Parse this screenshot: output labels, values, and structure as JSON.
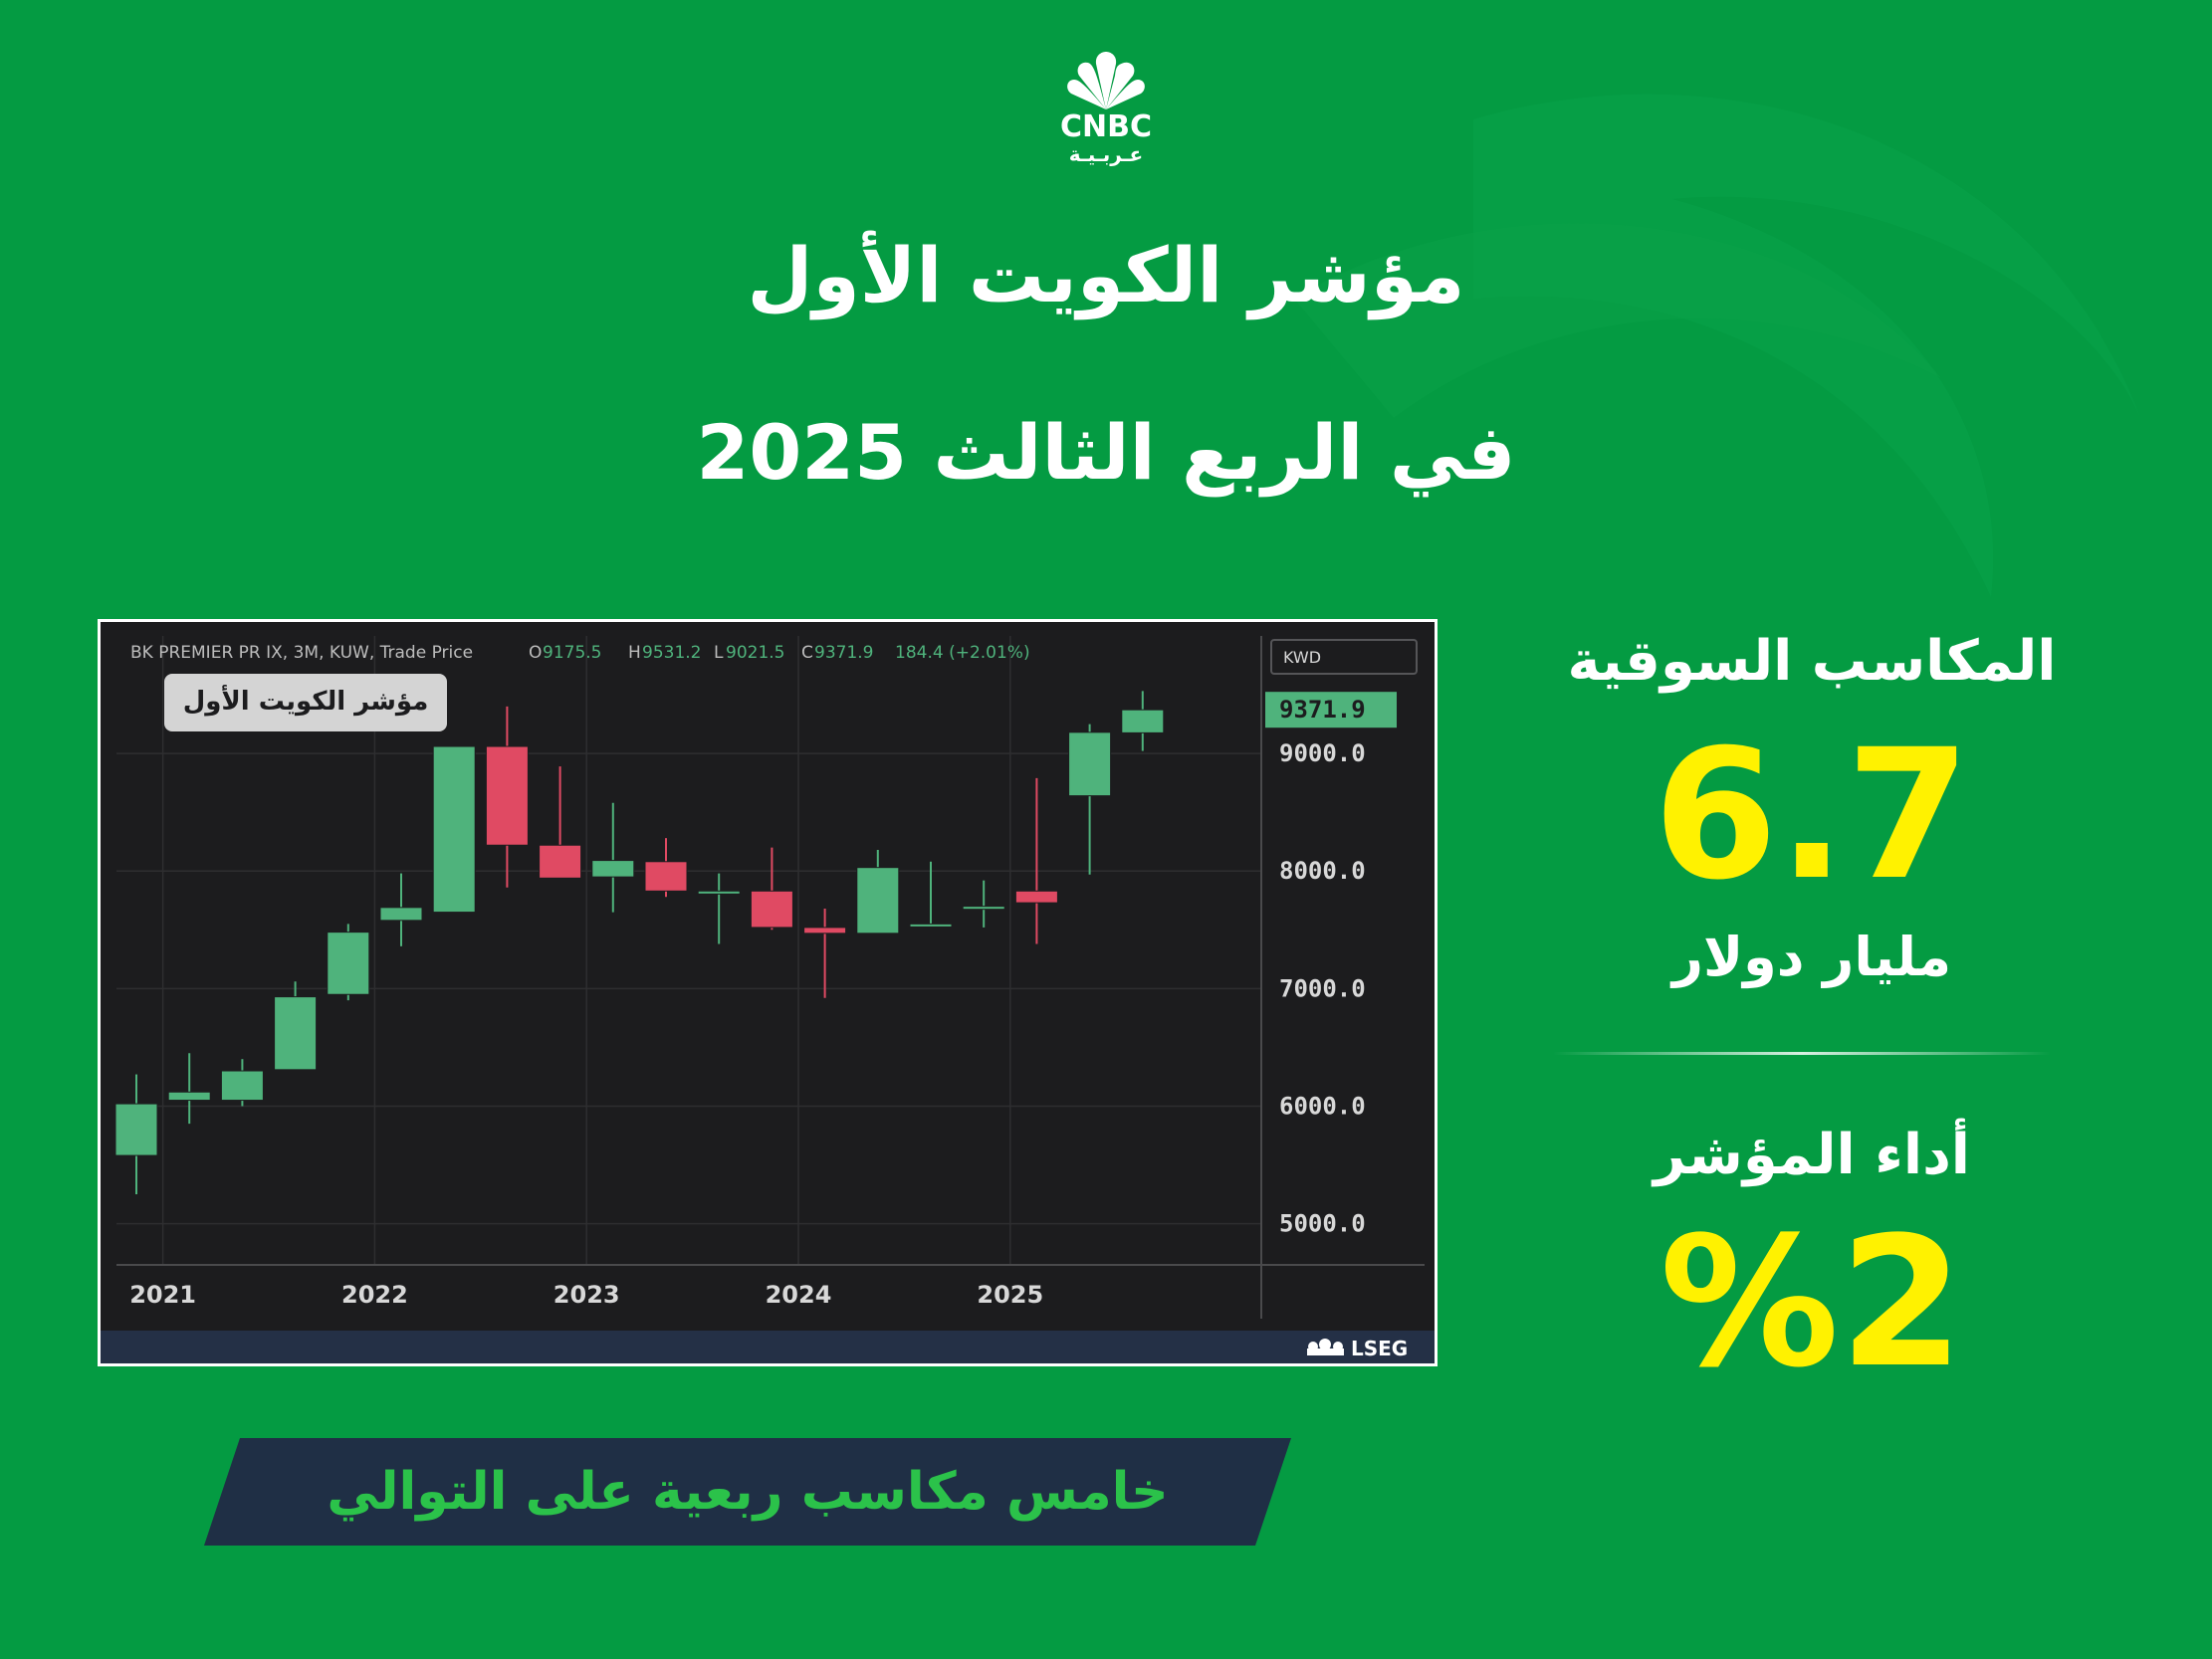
{
  "brand": {
    "logo_text": "CNBC",
    "logo_sub": "عـربـيـة"
  },
  "title": {
    "line1": "مؤشر الكويت الأول",
    "line2": "في الربع الثالث 2025"
  },
  "chart_header": {
    "instrument": "BK PREMIER PR IX, 3M, KUW, Trade Price",
    "open_label": "O",
    "open": "9175.5",
    "high_label": "H",
    "high": "9531.2",
    "low_label": "L",
    "low": "9021.5",
    "close_label": "C",
    "close": "9371.9",
    "change": "184.4 (+2.01%)",
    "currency": "KWD",
    "chart_label": "مؤشر الكويت الأول",
    "last_price": "9371.9",
    "source": "LSEG"
  },
  "chart_data": {
    "type": "candlestick",
    "x_tick_labels": [
      "2021",
      "2022",
      "2023",
      "2024",
      "2025"
    ],
    "y_tick_labels": [
      "5000.0",
      "6000.0",
      "7000.0",
      "8000.0",
      "9000.0"
    ],
    "y_ticks": [
      5000,
      6000,
      7000,
      8000,
      9000
    ],
    "ylim": [
      4700,
      10000
    ],
    "grid": true,
    "periods": [
      "2020Q4",
      "2021Q1",
      "2021Q2",
      "2021Q3",
      "2021Q4",
      "2022Q1",
      "2022Q2",
      "2022Q3",
      "2022Q4",
      "2023Q1",
      "2023Q2",
      "2023Q3",
      "2023Q4",
      "2024Q1",
      "2024Q2",
      "2024Q3",
      "2024Q4",
      "2025Q1",
      "2025Q2",
      "2025Q3"
    ],
    "open": [
      5580,
      6050,
      6050,
      6310,
      6950,
      7580,
      7650,
      9060,
      8220,
      7950,
      8080,
      7820,
      7830,
      7520,
      7470,
      7550,
      7700,
      7830,
      8640,
      9175.5
    ],
    "high": [
      6270,
      6450,
      6400,
      7060,
      7550,
      7980,
      9060,
      9400,
      8890,
      8580,
      8280,
      7980,
      8200,
      7680,
      8180,
      8080,
      7920,
      8790,
      9250,
      9531.2
    ],
    "low": [
      5250,
      5850,
      6000,
      6330,
      6900,
      7360,
      7650,
      7860,
      7940,
      7650,
      7780,
      7380,
      7500,
      6920,
      7470,
      7530,
      7520,
      7380,
      7970,
      9021.5
    ],
    "close": [
      6020,
      6120,
      6300,
      6930,
      7480,
      7690,
      9060,
      8220,
      7940,
      8090,
      7830,
      7830,
      7520,
      7470,
      8030,
      7550,
      7700,
      7730,
      9180,
      9371.9
    ],
    "colors": {
      "up": "#4fb37c",
      "down": "#e04a63",
      "bg": "#1c1c1e",
      "grid": "#2e2e30",
      "text": "#d8d8d8"
    }
  },
  "stats": {
    "market_cap_label": "المكاسب السوقية",
    "market_cap_value": "6.7",
    "market_cap_unit": "مليار دولار",
    "performance_label": "أداء المؤشر",
    "performance_value": "%2"
  },
  "banner": {
    "text": "خامس مكاسب ربعية على التوالي"
  },
  "colors": {
    "background": "#049b42",
    "accent_yellow": "#fff200",
    "banner_bg": "#1f2f45",
    "banner_text": "#2bc24a"
  }
}
